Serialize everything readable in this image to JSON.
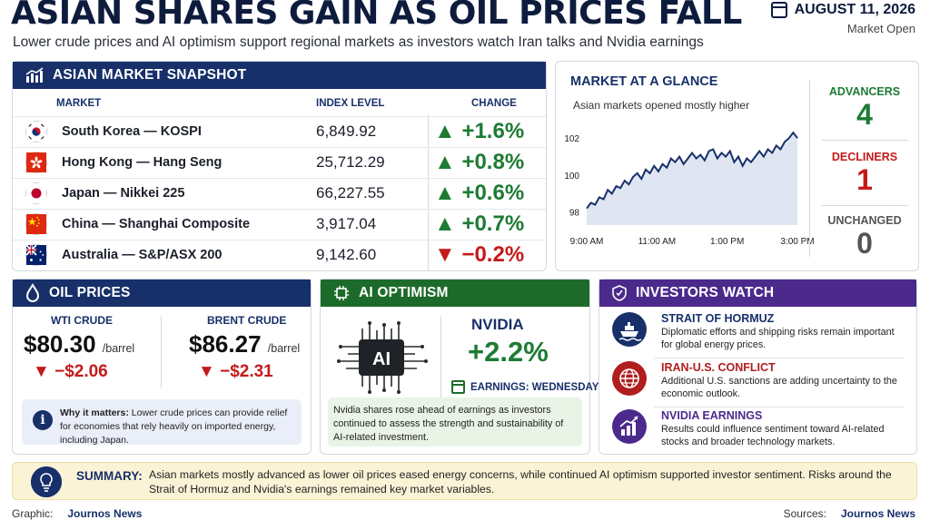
{
  "header": {
    "title": "ASIAN SHARES GAIN AS OIL PRICES FALL",
    "subtitle": "Lower crude prices and AI optimism support regional markets as investors watch Iran talks and Nvidia earnings",
    "date": "AUGUST 11, 2026",
    "status": "Market Open"
  },
  "snapshot": {
    "title": "ASIAN MARKET SNAPSHOT",
    "col_market": "MARKET",
    "col_level": "INDEX LEVEL",
    "col_change": "CHANGE",
    "rows": [
      {
        "flag": "south-korea",
        "market": "South Korea — KOSPI",
        "level": "6,849.92",
        "arrow": "▲",
        "change": "+1.6%",
        "dir": "up"
      },
      {
        "flag": "hong-kong",
        "market": "Hong Kong — Hang Seng",
        "level": "25,712.29",
        "arrow": "▲",
        "change": "+0.8%",
        "dir": "up"
      },
      {
        "flag": "japan",
        "market": "Japan — Nikkei 225",
        "level": "66,227.55",
        "arrow": "▲",
        "change": "+0.6%",
        "dir": "up"
      },
      {
        "flag": "china",
        "market": "China — Shanghai Composite",
        "level": "3,917.04",
        "arrow": "▲",
        "change": "+0.7%",
        "dir": "up"
      },
      {
        "flag": "australia",
        "market": "Australia — S&P/ASX 200",
        "level": "9,142.60",
        "arrow": "▼",
        "change": "−0.2%",
        "dir": "down"
      }
    ]
  },
  "glance": {
    "title": "MARKET AT A GLANCE",
    "subtitle": "Asian markets opened mostly higher",
    "advancers_label": "ADVANCERS",
    "advancers": "4",
    "decliners_label": "DECLINERS",
    "decliners": "1",
    "unchanged_label": "UNCHANGED",
    "unchanged": "0"
  },
  "chart_data": {
    "type": "area",
    "title": "",
    "xlabel": "",
    "ylabel": "",
    "x_ticks": [
      "9:00 AM",
      "11:00 AM",
      "1:00 PM",
      "3:00 PM"
    ],
    "y_ticks": [
      98,
      100,
      102
    ],
    "ylim": [
      97.3,
      102.6
    ],
    "xlim": [
      0,
      1
    ],
    "grid": false,
    "color": "#17306a",
    "series": [
      {
        "x": [
          0.0,
          0.02,
          0.04,
          0.06,
          0.08,
          0.1,
          0.12,
          0.14,
          0.16,
          0.18,
          0.2,
          0.22,
          0.24,
          0.26,
          0.28,
          0.3,
          0.32,
          0.34,
          0.36,
          0.38,
          0.4,
          0.42,
          0.44,
          0.46,
          0.48,
          0.5,
          0.52,
          0.54,
          0.56,
          0.58,
          0.6,
          0.62,
          0.64,
          0.66,
          0.68,
          0.7,
          0.72,
          0.74,
          0.76,
          0.78,
          0.8,
          0.82,
          0.84,
          0.86,
          0.88,
          0.9,
          0.92,
          0.94,
          0.96,
          0.98,
          1.0
        ],
        "y": [
          98.2,
          98.5,
          98.4,
          98.8,
          98.7,
          99.2,
          99.0,
          99.4,
          99.3,
          99.7,
          99.5,
          99.9,
          100.1,
          99.8,
          100.3,
          100.1,
          100.5,
          100.2,
          100.6,
          100.4,
          100.9,
          100.7,
          101.0,
          100.6,
          100.9,
          101.2,
          100.9,
          101.1,
          100.8,
          101.3,
          101.4,
          100.9,
          101.2,
          101.0,
          101.3,
          100.7,
          101.0,
          100.5,
          100.9,
          100.7,
          101.0,
          101.3,
          101.0,
          101.4,
          101.2,
          101.6,
          101.4,
          101.8,
          102.0,
          102.3,
          102.0
        ]
      }
    ]
  },
  "oil": {
    "title": "OIL PRICES",
    "wti_label": "WTI CRUDE",
    "wti_price": "$80.30",
    "wti_unit": "/barrel",
    "wti_arrow": "▼",
    "wti_change": "−$2.06",
    "brent_label": "BRENT CRUDE",
    "brent_price": "$86.27",
    "brent_unit": "/barrel",
    "brent_arrow": "▼",
    "brent_change": "−$2.31",
    "note_lead": "Why it matters:",
    "note_text": " Lower crude prices can provide relief for economies that rely heavily on imported energy, including Japan."
  },
  "ai": {
    "title": "AI OPTIMISM",
    "chip_label": "AI",
    "company": "NVIDIA",
    "change": "+2.2%",
    "earnings": "EARNINGS: WEDNESDAY",
    "note": "Nvidia shares rose ahead of earnings as investors continued to assess the strength and sustainability of AI-related investment."
  },
  "watch": {
    "title": "INVESTORS WATCH",
    "items": [
      {
        "title": "STRAIT OF HORMUZ",
        "text": "Diplomatic efforts and shipping risks remain important for global energy prices."
      },
      {
        "title": "IRAN-U.S. CONFLICT",
        "text": "Additional U.S. sanctions are adding uncertainty to the economic outlook."
      },
      {
        "title": "NVIDIA EARNINGS",
        "text": "Results could influence sentiment toward AI-related stocks and broader technology markets."
      }
    ]
  },
  "summary": {
    "label": "SUMMARY:",
    "text": "Asian markets mostly advanced as lower oil prices eased energy concerns, while continued AI optimism supported investor sentiment. Risks around the Strait of Hormuz and Nvidia's earnings remained key market variables."
  },
  "footer": {
    "graphic_label": "Graphic:",
    "graphic_value": "Journos News",
    "sources_label": "Sources:",
    "sources_value": "Journos News"
  }
}
